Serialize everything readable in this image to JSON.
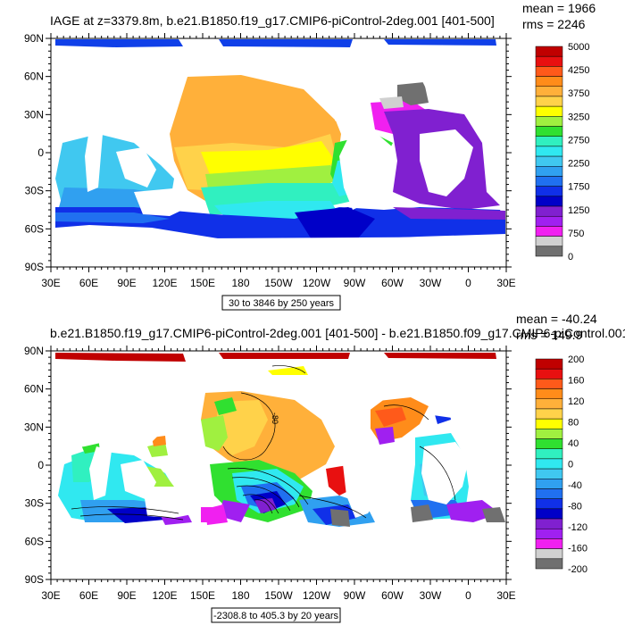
{
  "panel1": {
    "title": "IAGE at z=3379.8m, b.e21.B1850.f19_g17.CMIP6-piControl-2deg.001 [401-500]",
    "mean_text": "mean = 1966",
    "rms_text": "rms = 2246",
    "contour_info": "30 to 3846 by 250 years",
    "colorbar": {
      "labels": [
        "5000",
        "4250",
        "3750",
        "3250",
        "2750",
        "2250",
        "1750",
        "1250",
        "750",
        "0"
      ],
      "colors": [
        "#c00000",
        "#e81010",
        "#ff5a1a",
        "#ff8c1a",
        "#ffb03a",
        "#ffd24a",
        "#ffff00",
        "#a0f040",
        "#30e030",
        "#30f0c0",
        "#30e8f0",
        "#40c8f0",
        "#30a0f0",
        "#2070f0",
        "#1030e8",
        "#0000c8",
        "#8020d0",
        "#a020f0",
        "#f020f0",
        "#d0d0d0",
        "#707070"
      ]
    }
  },
  "panel2": {
    "title": "b.e21.B1850.f19_g17.CMIP6-piControl-2deg.001 [401-500] - b.e21.B1850.f09_g17.CMIP6-piControl.001",
    "mean_text": "mean = -40.24",
    "rms_text": "rms = 149.9",
    "contour_info": "-2308.8 to 405.3 by 20 years",
    "map_label": "-80",
    "colorbar": {
      "labels": [
        "200",
        "160",
        "120",
        "80",
        "40",
        "0",
        "-40",
        "-80",
        "-120",
        "-160",
        "-200"
      ],
      "colors": [
        "#c00000",
        "#e81010",
        "#ff5a1a",
        "#ff8c1a",
        "#ffb03a",
        "#ffd24a",
        "#ffff00",
        "#a0f040",
        "#30e030",
        "#30f0c0",
        "#30e8f0",
        "#40c8f0",
        "#30a0f0",
        "#2070f0",
        "#1030e8",
        "#0000c8",
        "#8020d0",
        "#a020f0",
        "#f020f0",
        "#d0d0d0",
        "#707070"
      ]
    }
  },
  "axes": {
    "lat_labels": [
      "90N",
      "60N",
      "30N",
      "0",
      "30S",
      "60S",
      "90S"
    ],
    "lon_labels": [
      "30E",
      "60E",
      "90E",
      "120E",
      "150E",
      "180",
      "150W",
      "120W",
      "90W",
      "60W",
      "30W",
      "0",
      "30E"
    ]
  }
}
